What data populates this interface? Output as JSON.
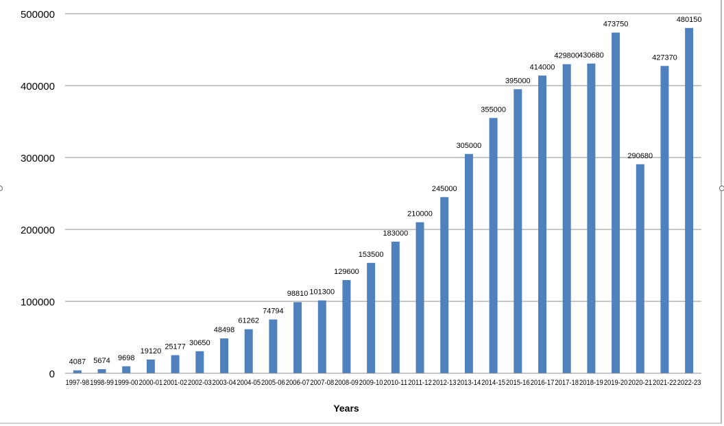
{
  "chart_data": {
    "type": "bar",
    "title": "",
    "xlabel": "Years",
    "ylabel": "",
    "ylim": [
      0,
      500000
    ],
    "yticks": [
      0,
      100000,
      200000,
      300000,
      400000,
      500000
    ],
    "ytick_labels": [
      "0",
      "100000",
      "200000",
      "300000",
      "400000",
      "500000"
    ],
    "grid": true,
    "legend": "none",
    "bar_color": "#4f81bd",
    "categories": [
      "1997-98",
      "1998-99",
      "1999-00",
      "2000-01",
      "2001-02",
      "2002-03",
      "2003-04",
      "2004-05",
      "2005-06",
      "2006-07",
      "2007-08",
      "2008-09",
      "2009-10",
      "2010-11",
      "2011-12",
      "2012-13",
      "2013-14",
      "2014-15",
      "2015-16",
      "2016-17",
      "2017-18",
      "2018-19",
      "2019-20",
      "2020-21",
      "2021-22",
      "2022-23"
    ],
    "values": [
      4087,
      5674,
      9698,
      19120,
      25177,
      30650,
      48498,
      61262,
      74794,
      98810,
      101300,
      129600,
      153500,
      183000,
      210000,
      245000,
      305000,
      355000,
      395000,
      414000,
      429800,
      430680,
      473750,
      290680,
      427370,
      480150
    ],
    "data_labels": [
      "4087",
      "5674",
      "9698",
      "19120",
      "25177",
      "30650",
      "48498",
      "61262",
      "74794",
      "98810",
      "101300",
      "129600",
      "153500",
      "183000",
      "210000",
      "245000",
      "305000",
      "355000",
      "395000",
      "414000",
      "429800",
      "430680",
      "473750",
      "290680",
      "427370",
      "480150"
    ]
  }
}
